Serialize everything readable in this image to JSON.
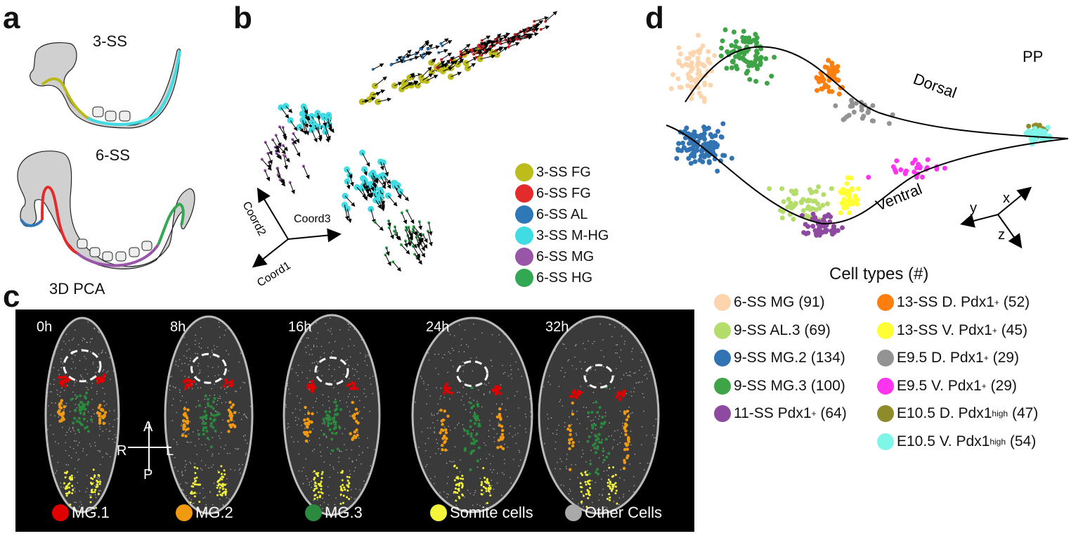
{
  "panel_a": {
    "label": "a",
    "stage1": "3-SS",
    "stage2": "6-SS",
    "bottom_text": "3D PCA"
  },
  "panel_b": {
    "label": "b",
    "axes": [
      "Coord1",
      "Coord2",
      "Coord3"
    ],
    "legend": [
      {
        "label": "3-SS FG",
        "color": "#bcbc1a"
      },
      {
        "label": "6-SS FG",
        "color": "#e32b2b"
      },
      {
        "label": "6-SS AL",
        "color": "#2f78b7"
      },
      {
        "label": "3-SS M-HG",
        "color": "#3fdde3"
      },
      {
        "label": "6-SS MG",
        "color": "#9955a8"
      },
      {
        "label": "6-SS HG",
        "color": "#33a853"
      }
    ]
  },
  "panel_c": {
    "label": "c",
    "timepoints": [
      "0h",
      "8h",
      "16h",
      "24h",
      "32h"
    ],
    "orientation": {
      "anterior": "A",
      "posterior": "P",
      "right": "R",
      "left": "L"
    },
    "legend": [
      {
        "label": "MG.1",
        "color": "#e00000"
      },
      {
        "label": "MG.2",
        "color": "#f09a10"
      },
      {
        "label": "MG.3",
        "color": "#2a8a3e"
      },
      {
        "label": "Somite cells",
        "color": "#f4f43a"
      },
      {
        "label": "Other Cells",
        "color": "#a9a9a9"
      }
    ]
  },
  "panel_d": {
    "label": "d",
    "branch_dorsal": "Dorsal",
    "branch_ventral": "Ventral",
    "endpoint": "PP",
    "axes": [
      "x",
      "y",
      "z"
    ],
    "legend_title": "Cell types (#)",
    "legend": [
      {
        "label": "6-SS MG",
        "sup": "",
        "count": "(91)",
        "color": "#fcd4ad"
      },
      {
        "label": "9-SS AL.3",
        "sup": "",
        "count": "(69)",
        "color": "#b5dd6b"
      },
      {
        "label": "9-SS MG.2",
        "sup": "",
        "count": "(134)",
        "color": "#3274b3"
      },
      {
        "label": "9-SS MG.3",
        "sup": "",
        "count": "(100)",
        "color": "#3ea447"
      },
      {
        "label": "11-SS Pdx1",
        "sup": "+",
        "count": "(64)",
        "color": "#8d4aa0"
      },
      {
        "label": "13-SS D. Pdx1",
        "sup": "+",
        "count": "(52)",
        "color": "#ff7f0e"
      },
      {
        "label": "13-SS V. Pdx1",
        "sup": "+",
        "count": "(45)",
        "color": "#ffff33"
      },
      {
        "label": "E9.5 D. Pdx1",
        "sup": "+",
        "count": "(29)",
        "color": "#939393"
      },
      {
        "label": "E9.5 V. Pdx1",
        "sup": "+",
        "count": "(29)",
        "color": "#ff33f0"
      },
      {
        "label": "E10.5 D. Pdx1",
        "sup": "high",
        "count": "(47)",
        "color": "#8f8b2a"
      },
      {
        "label": "E10.5 V. Pdx1",
        "sup": "high",
        "count": "(54)",
        "color": "#7ff5e8"
      }
    ]
  }
}
